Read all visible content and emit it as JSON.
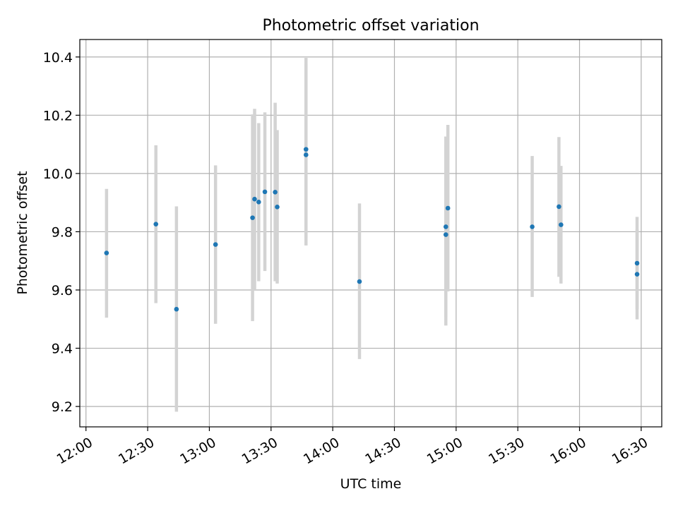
{
  "chart_data": {
    "type": "scatter",
    "title": "Photometric offset variation",
    "xlabel": "UTC time",
    "ylabel": "Photometric offset",
    "x_ticks": [
      "12:00",
      "12:30",
      "13:00",
      "13:30",
      "14:00",
      "14:30",
      "15:00",
      "15:30",
      "16:00",
      "16:30"
    ],
    "y_ticks": [
      "9.2",
      "9.4",
      "9.6",
      "9.8",
      "10.0",
      "10.2",
      "10.4"
    ],
    "xlim": [
      "11:57",
      "16:40"
    ],
    "ylim": [
      9.13,
      10.46
    ],
    "grid": true,
    "point_color": "#1f77b4",
    "errorbar_color": "#d3d3d3",
    "points": [
      {
        "time": "12:10",
        "y": 9.727,
        "low": 9.505,
        "high": 9.947
      },
      {
        "time": "12:34",
        "y": 9.826,
        "low": 9.555,
        "high": 10.097
      },
      {
        "time": "12:44",
        "y": 9.534,
        "low": 9.182,
        "high": 9.887
      },
      {
        "time": "13:03",
        "y": 9.756,
        "low": 9.484,
        "high": 10.028
      },
      {
        "time": "13:21",
        "y": 9.848,
        "low": 9.493,
        "high": 10.203
      },
      {
        "time": "13:22",
        "y": 9.912,
        "low": 9.6,
        "high": 10.222
      },
      {
        "time": "13:24",
        "y": 9.902,
        "low": 9.63,
        "high": 10.173
      },
      {
        "time": "13:27",
        "y": 9.937,
        "low": 9.665,
        "high": 10.21
      },
      {
        "time": "13:32",
        "y": 9.936,
        "low": 9.63,
        "high": 10.243
      },
      {
        "time": "13:33",
        "y": 9.885,
        "low": 9.622,
        "high": 10.149
      },
      {
        "time": "13:47",
        "y": 10.083,
        "low": 9.78,
        "high": 10.397
      },
      {
        "time": "13:47",
        "y": 10.064,
        "low": 9.753,
        "high": 10.376
      },
      {
        "time": "14:13",
        "y": 9.629,
        "low": 9.363,
        "high": 9.897
      },
      {
        "time": "14:55",
        "y": 9.817,
        "low": 9.505,
        "high": 10.127
      },
      {
        "time": "14:55",
        "y": 9.79,
        "low": 9.478,
        "high": 10.1
      },
      {
        "time": "14:56",
        "y": 9.881,
        "low": 9.595,
        "high": 10.167
      },
      {
        "time": "15:37",
        "y": 9.817,
        "low": 9.576,
        "high": 10.06
      },
      {
        "time": "15:50",
        "y": 9.886,
        "low": 9.645,
        "high": 10.125
      },
      {
        "time": "15:51",
        "y": 9.824,
        "low": 9.622,
        "high": 10.026
      },
      {
        "time": "16:28",
        "y": 9.692,
        "low": 9.534,
        "high": 9.851
      },
      {
        "time": "16:28",
        "y": 9.654,
        "low": 9.499,
        "high": 9.808
      }
    ]
  }
}
